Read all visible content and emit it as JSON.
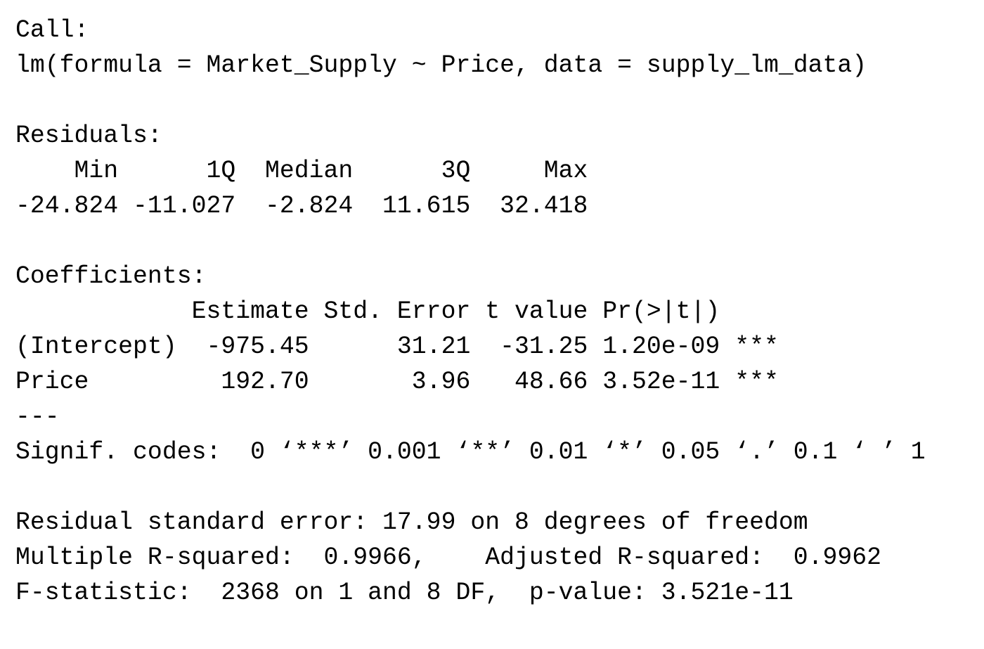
{
  "sections": [
    {
      "lines": [
        "Call:",
        "lm(formula = Market_Supply ~ Price, data = supply_lm_data)"
      ]
    },
    {
      "lines": [
        "Residuals:",
        "    Min      1Q  Median      3Q     Max",
        "-24.824 -11.027  -2.824  11.615  32.418"
      ]
    },
    {
      "lines": [
        "Coefficients:",
        "            Estimate Std. Error t value Pr(>|t|)",
        "(Intercept)  -975.45      31.21  -31.25 1.20e-09 ***",
        "Price         192.70       3.96   48.66 3.52e-11 ***",
        "---",
        "Signif. codes:  0 ‘***’ 0.001 ‘**’ 0.01 ‘*’ 0.05 ‘.’ 0.1 ‘ ’ 1"
      ]
    },
    {
      "lines": [
        "Residual standard error: 17.99 on 8 degrees of freedom",
        "Multiple R-squared:  0.9966,    Adjusted R-squared:  0.9962",
        "F-statistic:  2368 on 1 and 8 DF,  p-value: 3.521e-11"
      ]
    }
  ]
}
